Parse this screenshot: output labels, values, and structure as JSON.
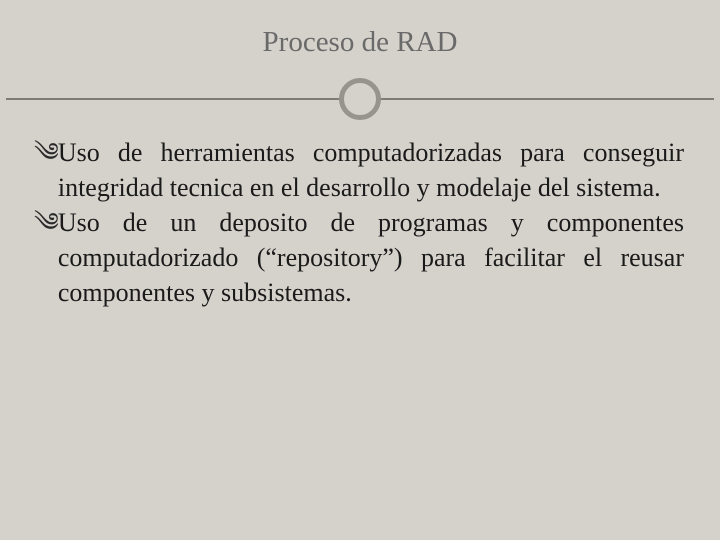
{
  "slide": {
    "title": "Proceso de RAD",
    "title_color": "#6a6a6a",
    "title_fontsize": 29,
    "background_color": "#d5d2cb",
    "divider": {
      "line_color": "#7d7b76",
      "ring_border_color": "#97948d",
      "ring_border_width": 5,
      "ring_diameter": 42
    },
    "body_fontsize": 26,
    "body_color": "#1a1a1a",
    "body_lineheight": 35,
    "bullet_glyph": "་",
    "bullets": [
      "Uso de herramientas computadorizadas para conseguir integridad tecnica en el desarrollo y modelaje del sistema.",
      "Uso de un deposito de programas y componentes computadorizado (“repository”) para facilitar el reusar componentes y subsistemas."
    ]
  }
}
